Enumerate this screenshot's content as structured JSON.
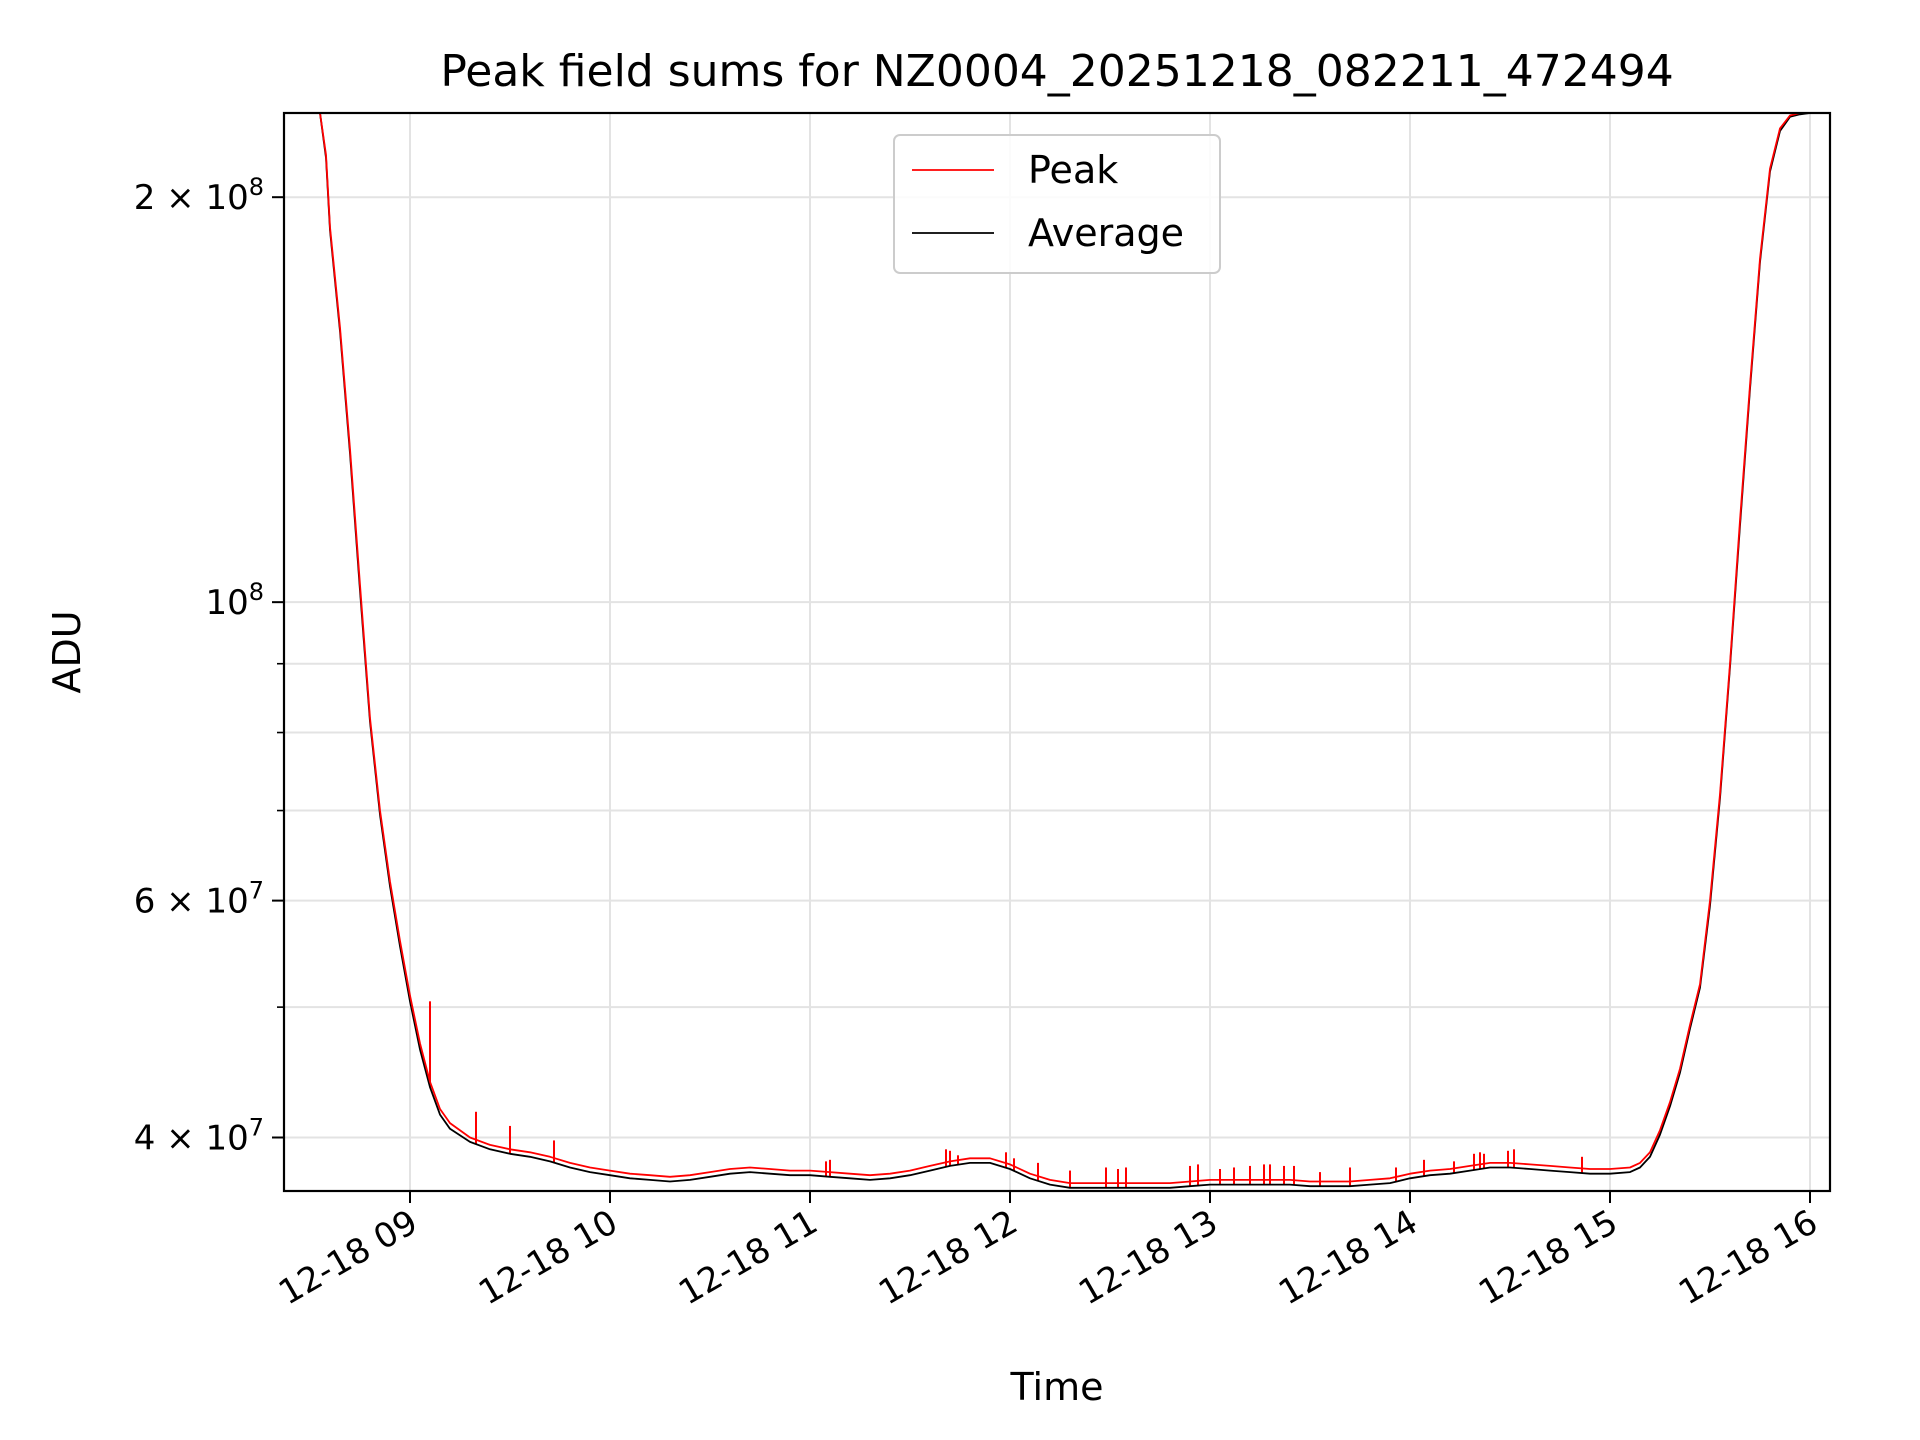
{
  "chart_data": {
    "type": "line",
    "title": "Peak field sums for NZ0004_20251218_082211_472494",
    "xlabel": "Time",
    "ylabel": "ADU",
    "yscale": "log",
    "grid": true,
    "legend_position": "upper-center",
    "xlim": [
      8.37,
      16.1
    ],
    "ylim": [
      36500000,
      231000000
    ],
    "x_unit": "hour of 2025-12-18",
    "x_ticks": [
      {
        "value": 9,
        "label": "12-18 09"
      },
      {
        "value": 10,
        "label": "12-18 10"
      },
      {
        "value": 11,
        "label": "12-18 11"
      },
      {
        "value": 12,
        "label": "12-18 12"
      },
      {
        "value": 13,
        "label": "12-18 13"
      },
      {
        "value": 14,
        "label": "12-18 14"
      },
      {
        "value": 15,
        "label": "12-18 15"
      },
      {
        "value": 16,
        "label": "12-18 16"
      }
    ],
    "y_major_ticks": [
      {
        "value": 40000000,
        "base": "4 × 10",
        "exp": "7"
      },
      {
        "value": 60000000,
        "base": "6 × 10",
        "exp": "7"
      },
      {
        "value": 100000000,
        "base": "10",
        "exp": "8"
      },
      {
        "value": 200000000,
        "base": "2 × 10",
        "exp": "8"
      }
    ],
    "y_minor_ticks": [
      50000000,
      70000000,
      80000000,
      90000000
    ],
    "series": [
      {
        "name": "Peak",
        "color": "#ff0000",
        "x": [
          8.37,
          8.55,
          8.58,
          8.6,
          8.65,
          8.7,
          8.75,
          8.8,
          8.85,
          8.9,
          8.95,
          9.0,
          9.05,
          9.1,
          9.15,
          9.2,
          9.3,
          9.4,
          9.5,
          9.6,
          9.7,
          9.8,
          9.9,
          10.0,
          10.1,
          10.2,
          10.3,
          10.4,
          10.5,
          10.6,
          10.7,
          10.8,
          10.9,
          11.0,
          11.1,
          11.2,
          11.3,
          11.4,
          11.5,
          11.6,
          11.7,
          11.8,
          11.9,
          12.0,
          12.1,
          12.2,
          12.3,
          12.4,
          12.5,
          12.6,
          12.7,
          12.8,
          12.9,
          13.0,
          13.1,
          13.2,
          13.3,
          13.4,
          13.5,
          13.6,
          13.7,
          13.8,
          13.9,
          14.0,
          14.1,
          14.2,
          14.3,
          14.4,
          14.5,
          14.6,
          14.7,
          14.8,
          14.9,
          15.0,
          15.1,
          15.15,
          15.2,
          15.25,
          15.3,
          15.35,
          15.4,
          15.45,
          15.5,
          15.55,
          15.6,
          15.65,
          15.7,
          15.75,
          15.8,
          15.85,
          15.9,
          15.95,
          16.0,
          16.1
        ],
        "values": [
          231000000,
          231000000,
          215000000,
          190000000,
          160000000,
          130000000,
          103000000,
          82000000,
          70000000,
          62000000,
          56000000,
          51000000,
          47000000,
          44000000,
          42000000,
          41000000,
          40000000,
          39500000,
          39200000,
          39000000,
          38700000,
          38300000,
          38000000,
          37800000,
          37600000,
          37500000,
          37400000,
          37500000,
          37700000,
          37900000,
          38000000,
          37900000,
          37800000,
          37800000,
          37700000,
          37600000,
          37500000,
          37600000,
          37800000,
          38100000,
          38400000,
          38600000,
          38600000,
          38200000,
          37600000,
          37200000,
          37000000,
          37000000,
          37000000,
          37000000,
          37000000,
          37000000,
          37100000,
          37200000,
          37200000,
          37200000,
          37200000,
          37200000,
          37100000,
          37100000,
          37100000,
          37200000,
          37300000,
          37600000,
          37800000,
          37900000,
          38100000,
          38300000,
          38300000,
          38200000,
          38100000,
          38000000,
          37900000,
          37900000,
          38000000,
          38300000,
          39000000,
          40500000,
          42500000,
          45000000,
          48500000,
          52000000,
          60000000,
          72000000,
          90000000,
          115000000,
          145000000,
          180000000,
          210000000,
          225000000,
          230000000,
          231000000,
          231000000,
          231000000
        ]
      },
      {
        "name": "Average",
        "color": "#000000",
        "x": [
          8.37,
          8.55,
          8.58,
          8.6,
          8.65,
          8.7,
          8.75,
          8.8,
          8.85,
          8.9,
          8.95,
          9.0,
          9.05,
          9.1,
          9.15,
          9.2,
          9.3,
          9.4,
          9.5,
          9.6,
          9.7,
          9.8,
          9.9,
          10.0,
          10.1,
          10.2,
          10.3,
          10.4,
          10.5,
          10.6,
          10.7,
          10.8,
          10.9,
          11.0,
          11.1,
          11.2,
          11.3,
          11.4,
          11.5,
          11.6,
          11.7,
          11.8,
          11.9,
          12.0,
          12.1,
          12.2,
          12.3,
          12.4,
          12.5,
          12.6,
          12.7,
          12.8,
          12.9,
          13.0,
          13.1,
          13.2,
          13.3,
          13.4,
          13.5,
          13.6,
          13.7,
          13.8,
          13.9,
          14.0,
          14.1,
          14.2,
          14.3,
          14.4,
          14.5,
          14.6,
          14.7,
          14.8,
          14.9,
          15.0,
          15.1,
          15.15,
          15.2,
          15.25,
          15.3,
          15.35,
          15.4,
          15.45,
          15.5,
          15.55,
          15.6,
          15.65,
          15.7,
          15.75,
          15.8,
          15.85,
          15.9,
          15.95,
          16.0,
          16.1
        ],
        "values": [
          231000000,
          231000000,
          214000000,
          189000000,
          159000000,
          129000000,
          102000000,
          81500000,
          69500000,
          61500000,
          55500000,
          50500000,
          46500000,
          43600000,
          41600000,
          40600000,
          39700000,
          39200000,
          38900000,
          38700000,
          38400000,
          38000000,
          37700000,
          37500000,
          37300000,
          37200000,
          37100000,
          37200000,
          37400000,
          37600000,
          37700000,
          37600000,
          37500000,
          37500000,
          37400000,
          37300000,
          37200000,
          37300000,
          37500000,
          37800000,
          38100000,
          38300000,
          38300000,
          37900000,
          37300000,
          36900000,
          36700000,
          36700000,
          36700000,
          36700000,
          36700000,
          36700000,
          36800000,
          36900000,
          36900000,
          36900000,
          36900000,
          36900000,
          36800000,
          36800000,
          36800000,
          36900000,
          37000000,
          37300000,
          37500000,
          37600000,
          37800000,
          38000000,
          38000000,
          37900000,
          37800000,
          37700000,
          37600000,
          37600000,
          37700000,
          38000000,
          38700000,
          40200000,
          42200000,
          44700000,
          48200000,
          51700000,
          59500000,
          71500000,
          89500000,
          114000000,
          144000000,
          179000000,
          209000000,
          224000000,
          229500000,
          230500000,
          231000000,
          231000000
        ]
      }
    ],
    "peak_spikes": [
      {
        "x": 9.1,
        "value": 50500000
      },
      {
        "x": 9.33,
        "value": 41800000
      },
      {
        "x": 9.5,
        "value": 40800000
      },
      {
        "x": 9.72,
        "value": 39800000
      },
      {
        "x": 11.08,
        "value": 38400000
      },
      {
        "x": 11.1,
        "value": 38500000
      },
      {
        "x": 11.68,
        "value": 39200000
      },
      {
        "x": 11.7,
        "value": 39100000
      },
      {
        "x": 11.74,
        "value": 38800000
      },
      {
        "x": 11.98,
        "value": 39000000
      },
      {
        "x": 12.02,
        "value": 38600000
      },
      {
        "x": 12.14,
        "value": 38300000
      },
      {
        "x": 12.3,
        "value": 37800000
      },
      {
        "x": 12.48,
        "value": 38000000
      },
      {
        "x": 12.54,
        "value": 37900000
      },
      {
        "x": 12.58,
        "value": 38000000
      },
      {
        "x": 12.9,
        "value": 38100000
      },
      {
        "x": 12.94,
        "value": 38200000
      },
      {
        "x": 13.05,
        "value": 37900000
      },
      {
        "x": 13.12,
        "value": 38000000
      },
      {
        "x": 13.2,
        "value": 38100000
      },
      {
        "x": 13.27,
        "value": 38200000
      },
      {
        "x": 13.3,
        "value": 38200000
      },
      {
        "x": 13.37,
        "value": 38100000
      },
      {
        "x": 13.42,
        "value": 38100000
      },
      {
        "x": 13.55,
        "value": 37700000
      },
      {
        "x": 13.7,
        "value": 38000000
      },
      {
        "x": 13.93,
        "value": 38000000
      },
      {
        "x": 14.07,
        "value": 38500000
      },
      {
        "x": 14.22,
        "value": 38400000
      },
      {
        "x": 14.32,
        "value": 38900000
      },
      {
        "x": 14.35,
        "value": 39000000
      },
      {
        "x": 14.37,
        "value": 38900000
      },
      {
        "x": 14.49,
        "value": 39100000
      },
      {
        "x": 14.52,
        "value": 39200000
      },
      {
        "x": 14.86,
        "value": 38700000
      }
    ]
  }
}
